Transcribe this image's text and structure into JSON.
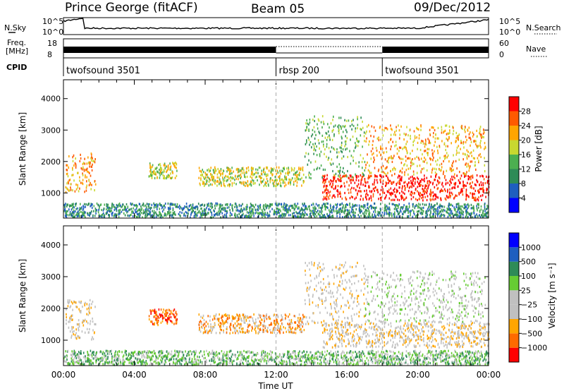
{
  "header": {
    "station": "Prince George (fitACF)",
    "beam": "Beam 05",
    "date": "09/Dec/2012"
  },
  "aux": {
    "nsky_label": "N.Sky",
    "nsky_ticks": [
      "10^5",
      "10^0"
    ],
    "nsearch_label": "N.Search",
    "nsearch_ticks": [
      "10^5",
      "10^0"
    ],
    "freq_label": "Freq.",
    "freq_unit": "[MHz]",
    "freq_ticks": [
      "18",
      "8"
    ],
    "nave_label": "Nave",
    "nave_ticks": [
      "60",
      "0"
    ],
    "cpid_label": "CPID",
    "cpid_segments": [
      {
        "name": "twofsound 3501",
        "start_h": 0,
        "end_h": 12
      },
      {
        "name": "rbsp 200",
        "start_h": 12,
        "end_h": 18
      },
      {
        "name": "twofsound 3501",
        "start_h": 18,
        "end_h": 24
      }
    ]
  },
  "chart_data": [
    {
      "type": "heatmap",
      "panel": "power",
      "ylabel": "Slant Range [km]",
      "yticks": [
        "1000",
        "2000",
        "3000",
        "4000"
      ],
      "ylim": [
        200,
        4600
      ],
      "xlim": [
        0,
        24
      ],
      "colorbar_label": "Power [dB]",
      "colorbar_ticks": [
        "28",
        "24",
        "20",
        "16",
        "12",
        "8",
        "4"
      ],
      "colors": [
        "#0000ff",
        "#1f5fbf",
        "#2e8b57",
        "#4caf50",
        "#c8d830",
        "#ffa500",
        "#ff5a00",
        "#ff0000"
      ],
      "echo_regions": [
        {
          "t0": 0.1,
          "t1": 1.8,
          "r0": 1050,
          "r1": 2300,
          "level": 5
        },
        {
          "t0": 4.8,
          "t1": 6.4,
          "r0": 1500,
          "r1": 2000,
          "level": 4
        },
        {
          "t0": 7.6,
          "t1": 13.6,
          "r0": 1250,
          "r1": 1850,
          "level": 4
        },
        {
          "t0": 14.6,
          "t1": 24,
          "r0": 800,
          "r1": 1600,
          "level": 7
        },
        {
          "t0": 13.6,
          "t1": 17,
          "r0": 1500,
          "r1": 3500,
          "level": 3
        },
        {
          "t0": 17,
          "t1": 23.8,
          "r0": 1600,
          "r1": 3200,
          "level": 5
        },
        {
          "t0": 0,
          "t1": 24,
          "r0": 250,
          "r1": 700,
          "level": 2
        }
      ]
    },
    {
      "type": "heatmap",
      "panel": "velocity",
      "ylabel": "Slant Range [km]",
      "yticks": [
        "1000",
        "2000",
        "3000",
        "4000"
      ],
      "ylim": [
        200,
        4600
      ],
      "xlim": [
        0,
        24
      ],
      "xticks": [
        "00:00",
        "04:00",
        "08:00",
        "12:00",
        "16:00",
        "20:00",
        "00:00"
      ],
      "xlabel": "Time UT",
      "colorbar_label": "Velocity [m s⁻¹]",
      "colorbar_ticks": [
        "1000",
        "500",
        "100",
        "25",
        "−25",
        "−100",
        "−500",
        "−1000"
      ],
      "colors": [
        "#ff0000",
        "#ff6a00",
        "#ffa500",
        "#c0c0c0",
        "#c0c0c0",
        "#66cc33",
        "#2e8b57",
        "#1f5fbf",
        "#0000ff"
      ],
      "echo_regions": [
        {
          "t0": 0.1,
          "t1": 1.8,
          "r0": 1050,
          "r1": 2300,
          "level": 3
        },
        {
          "t0": 4.8,
          "t1": 6.4,
          "r0": 1500,
          "r1": 2000,
          "level": 1
        },
        {
          "t0": 7.6,
          "t1": 13.6,
          "r0": 1250,
          "r1": 1850,
          "level": 2
        },
        {
          "t0": 14.6,
          "t1": 24,
          "r0": 800,
          "r1": 1600,
          "level": 3
        },
        {
          "t0": 13.6,
          "t1": 17,
          "r0": 1500,
          "r1": 3500,
          "level": 3
        },
        {
          "t0": 17,
          "t1": 23.8,
          "r0": 1600,
          "r1": 3200,
          "level": 4
        },
        {
          "t0": 0,
          "t1": 24,
          "r0": 250,
          "r1": 700,
          "level": 5
        }
      ]
    }
  ]
}
